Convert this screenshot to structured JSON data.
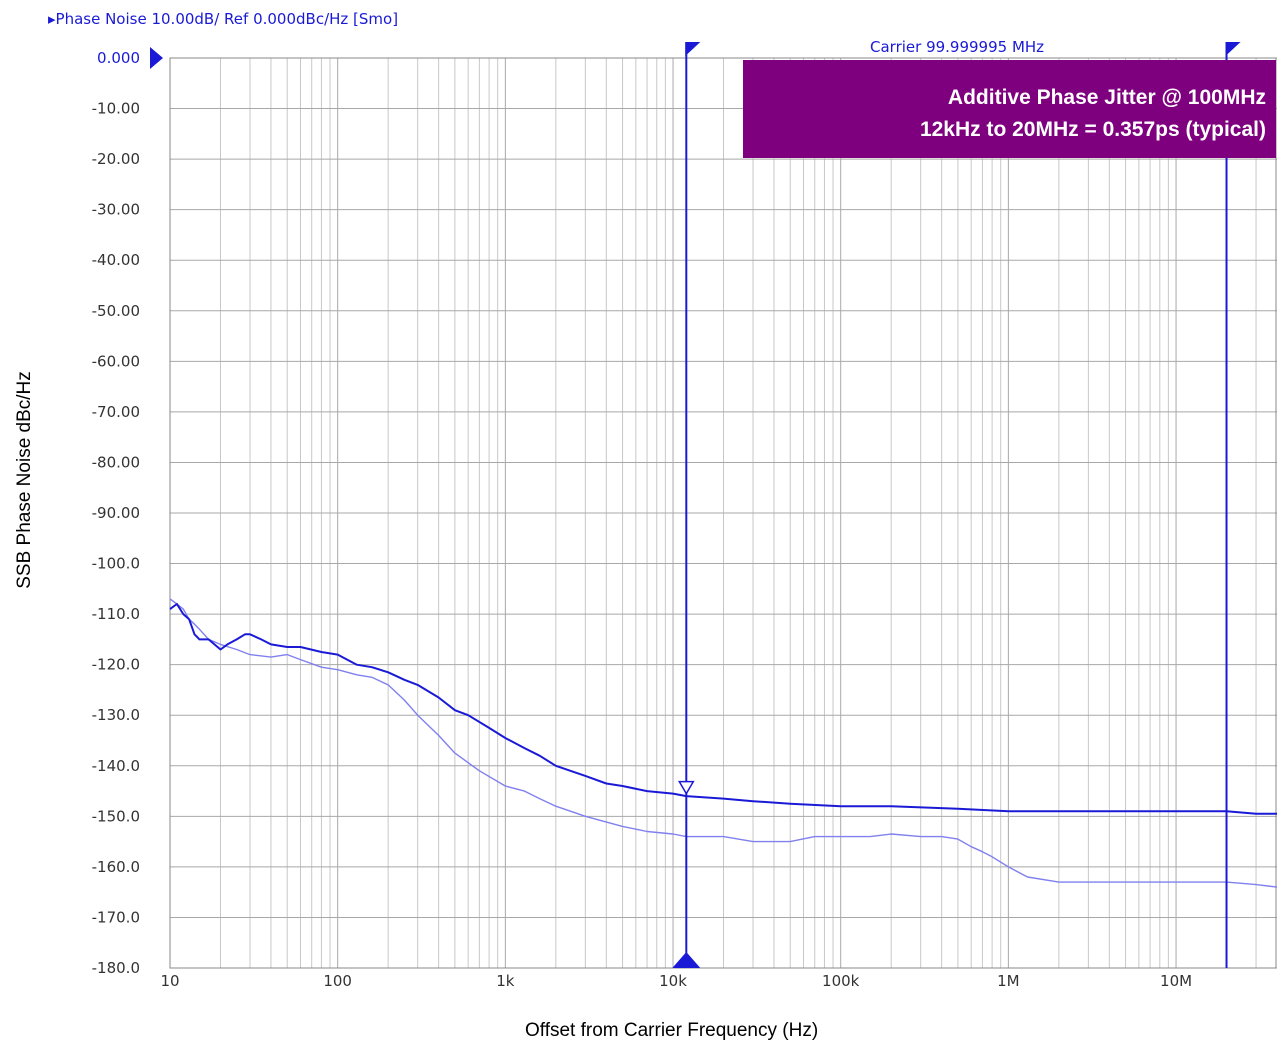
{
  "header": {
    "title": "▸Phase Noise 10.00dB/ Ref 0.000dBc/Hz [Smo]",
    "carrier": "Carrier 99.999995 MHz"
  },
  "annotation": {
    "line1": "Additive Phase Jitter @ 100MHz",
    "line2": "12kHz to 20MHz = 0.357ps (typical)",
    "bg_color": "#7f007f"
  },
  "colors": {
    "accent": "#1a1ad6",
    "trace_main": "#1a1ad6",
    "trace_light": "#8080ee",
    "grid": "#c8c8c8"
  },
  "chart_data": {
    "type": "line",
    "xscale": "log",
    "xlim": [
      10,
      40000000
    ],
    "ylim": [
      -180,
      0
    ],
    "grid": true,
    "xlabel": "Offset from Carrier Frequency (Hz)",
    "ylabel": "SSB Phase Noise   dBc/Hz",
    "x_ticks": [
      {
        "v": 10,
        "label": "10"
      },
      {
        "v": 100,
        "label": "100"
      },
      {
        "v": 1000,
        "label": "1k"
      },
      {
        "v": 10000,
        "label": "10k"
      },
      {
        "v": 100000,
        "label": "100k"
      },
      {
        "v": 1000000,
        "label": "1M"
      },
      {
        "v": 10000000,
        "label": "10M"
      }
    ],
    "y_ticks": [
      {
        "v": 0,
        "label": "0.000"
      },
      {
        "v": -10,
        "label": "-10.00"
      },
      {
        "v": -20,
        "label": "-20.00"
      },
      {
        "v": -30,
        "label": "-30.00"
      },
      {
        "v": -40,
        "label": "-40.00"
      },
      {
        "v": -50,
        "label": "-50.00"
      },
      {
        "v": -60,
        "label": "-60.00"
      },
      {
        "v": -70,
        "label": "-70.00"
      },
      {
        "v": -80,
        "label": "-80.00"
      },
      {
        "v": -90,
        "label": "-90.00"
      },
      {
        "v": -100,
        "label": "-100.0"
      },
      {
        "v": -110,
        "label": "-110.0"
      },
      {
        "v": -120,
        "label": "-120.0"
      },
      {
        "v": -130,
        "label": "-130.0"
      },
      {
        "v": -140,
        "label": "-140.0"
      },
      {
        "v": -150,
        "label": "-150.0"
      },
      {
        "v": -160,
        "label": "-160.0"
      },
      {
        "v": -170,
        "label": "-170.0"
      },
      {
        "v": -180,
        "label": "-180.0"
      }
    ],
    "markers": [
      {
        "x": 12000
      },
      {
        "x": 20000000
      }
    ],
    "series": [
      {
        "x": [
          10,
          11,
          12,
          13,
          14,
          15,
          17,
          20,
          22,
          25,
          28,
          30,
          35,
          40,
          50,
          60,
          80,
          100,
          130,
          160,
          200,
          250,
          300,
          400,
          500,
          600,
          800,
          1000,
          1300,
          1600,
          2000,
          3000,
          4000,
          5000,
          7000,
          10000,
          12000,
          20000,
          30000,
          50000,
          100000,
          200000,
          500000,
          1000000,
          2000000,
          5000000,
          10000000,
          20000000,
          30000000,
          40000000
        ],
        "y": [
          -109,
          -108,
          -110,
          -111,
          -114,
          -115,
          -115,
          -117,
          -116,
          -115,
          -114,
          -114,
          -115,
          -116,
          -116.5,
          -116.5,
          -117.5,
          -118,
          -120,
          -120.5,
          -121.5,
          -123,
          -124,
          -126.5,
          -129,
          -130,
          -132.5,
          -134.5,
          -136.5,
          -138,
          -140,
          -142,
          -143.5,
          -144,
          -145,
          -145.5,
          -146,
          -146.5,
          -147,
          -147.5,
          -148,
          -148,
          -148.5,
          -149,
          -149,
          -149,
          -149,
          -149,
          -149.5,
          -149.5
        ]
      },
      {
        "x": [
          10,
          11,
          12,
          13,
          14,
          15,
          17,
          20,
          25,
          30,
          40,
          50,
          60,
          80,
          100,
          130,
          160,
          200,
          250,
          300,
          400,
          500,
          700,
          1000,
          1300,
          1600,
          2000,
          3000,
          5000,
          7000,
          10000,
          12000,
          20000,
          30000,
          50000,
          70000,
          100000,
          150000,
          200000,
          300000,
          400000,
          500000,
          600000,
          700000,
          800000,
          1000000,
          1300000,
          2000000,
          5000000,
          10000000,
          20000000,
          30000000,
          40000000
        ],
        "y": [
          -107,
          -108,
          -109,
          -111,
          -112,
          -113,
          -115,
          -116,
          -117,
          -118,
          -118.5,
          -118,
          -119,
          -120.5,
          -121,
          -122,
          -122.5,
          -124,
          -127,
          -130,
          -134,
          -137.5,
          -141,
          -144,
          -145,
          -146.5,
          -148,
          -150,
          -152,
          -153,
          -153.5,
          -154,
          -154,
          -155,
          -155,
          -154,
          -154,
          -154,
          -153.5,
          -154,
          -154,
          -154.5,
          -156,
          -157,
          -158,
          -160,
          -162,
          -163,
          -163,
          -163,
          -163,
          -163.5,
          -164
        ]
      }
    ]
  }
}
